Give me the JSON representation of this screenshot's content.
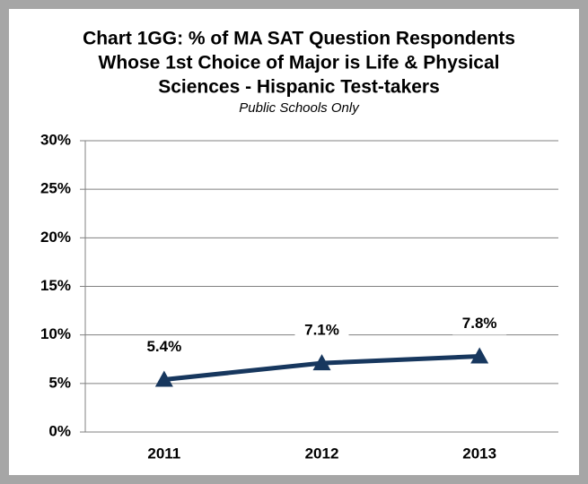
{
  "chart_data": {
    "type": "line",
    "title": [
      "Chart 1GG: % of MA SAT Question Respondents",
      "Whose 1st Choice of Major is Life & Physical",
      "Sciences - Hispanic Test-takers"
    ],
    "subtitle": "Public Schools Only",
    "categories": [
      "2011",
      "2012",
      "2013"
    ],
    "series": [
      {
        "color": "#17375e",
        "values": [
          5.4,
          7.1,
          7.8
        ],
        "value_labels": [
          "5.4%",
          "7.1%",
          "7.8%"
        ]
      }
    ],
    "ylim": [
      0,
      30
    ],
    "yticks": [
      {
        "value": 0,
        "label": "0%"
      },
      {
        "value": 5,
        "label": "5%"
      },
      {
        "value": 10,
        "label": "10%"
      },
      {
        "value": 15,
        "label": "15%"
      },
      {
        "value": 20,
        "label": "20%"
      },
      {
        "value": 25,
        "label": "25%"
      },
      {
        "value": 30,
        "label": "30%"
      }
    ],
    "grid": true
  }
}
